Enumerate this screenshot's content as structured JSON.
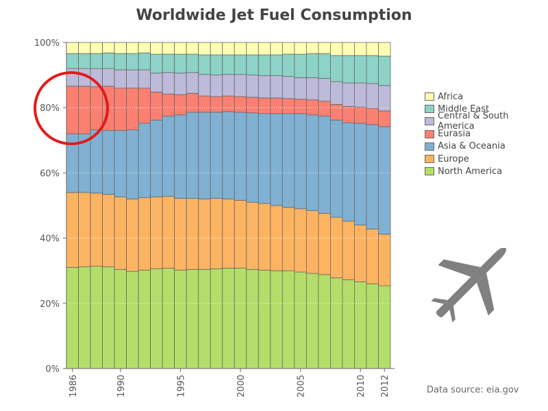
{
  "chart_data": {
    "type": "stacked-bar-100",
    "title": "Worldwide Jet Fuel Consumption",
    "xlabel": "",
    "ylabel": "",
    "ylim": [
      0,
      100
    ],
    "grid": true,
    "x": [
      1986,
      1987,
      1988,
      1989,
      1990,
      1991,
      1992,
      1993,
      1994,
      1995,
      1996,
      1997,
      1998,
      1999,
      2000,
      2001,
      2002,
      2003,
      2004,
      2005,
      2006,
      2007,
      2008,
      2009,
      2010,
      2011,
      2012
    ],
    "x_tick_labels": [
      "1986",
      "1990",
      "1995",
      "2000",
      "2005",
      "2010",
      "2012"
    ],
    "x_tick_values": [
      1986,
      1990,
      1995,
      2000,
      2005,
      2010,
      2012
    ],
    "y_tick_labels": [
      "0%",
      "20%",
      "40%",
      "60%",
      "80%",
      "100%"
    ],
    "y_tick_values": [
      0,
      20,
      40,
      60,
      80,
      100
    ],
    "series": [
      {
        "name": "North America",
        "color": "#b3de69",
        "values": [
          31.0,
          31.2,
          31.4,
          31.2,
          30.4,
          29.8,
          30.2,
          30.6,
          30.8,
          30.2,
          30.4,
          30.4,
          30.6,
          30.8,
          30.8,
          30.4,
          30.2,
          30.0,
          30.0,
          29.6,
          29.2,
          28.8,
          27.8,
          27.2,
          26.6,
          26.0,
          25.4
        ]
      },
      {
        "name": "Europe",
        "color": "#fdb462",
        "values": [
          23.0,
          22.8,
          22.4,
          22.2,
          22.2,
          22.2,
          22.2,
          22.0,
          22.0,
          22.0,
          21.8,
          21.6,
          21.6,
          21.2,
          20.8,
          20.6,
          20.4,
          20.0,
          19.4,
          19.4,
          19.2,
          18.8,
          18.6,
          18.0,
          17.4,
          16.8,
          15.8
        ]
      },
      {
        "name": "Asia & Oceania",
        "color": "#80b1d3",
        "values": [
          18.0,
          18.0,
          19.4,
          19.6,
          20.4,
          21.2,
          22.8,
          23.6,
          24.6,
          25.6,
          26.4,
          26.6,
          26.4,
          26.8,
          27.0,
          27.4,
          27.6,
          28.2,
          28.8,
          29.2,
          29.4,
          29.8,
          29.8,
          30.2,
          31.2,
          32.0,
          33.0
        ]
      },
      {
        "name": "Eurasia",
        "color": "#fb8072",
        "values": [
          14.6,
          14.6,
          13.2,
          13.6,
          13.0,
          12.8,
          10.8,
          8.6,
          6.8,
          6.2,
          5.8,
          5.0,
          4.8,
          4.8,
          4.8,
          4.8,
          4.8,
          4.8,
          4.6,
          4.4,
          4.6,
          4.6,
          4.8,
          5.0,
          5.0,
          5.0,
          4.8
        ]
      },
      {
        "name": "Central & South America",
        "color": "#bebada",
        "values": [
          5.4,
          5.4,
          5.6,
          5.4,
          5.6,
          5.6,
          5.6,
          5.8,
          6.6,
          6.6,
          6.4,
          6.6,
          6.6,
          6.6,
          6.8,
          6.8,
          6.8,
          6.8,
          6.8,
          6.6,
          6.8,
          7.0,
          7.0,
          7.2,
          7.4,
          7.6,
          7.8
        ]
      },
      {
        "name": "Middle East",
        "color": "#8dd3c7",
        "values": [
          4.6,
          4.6,
          4.6,
          4.8,
          5.0,
          5.0,
          5.2,
          5.8,
          5.6,
          5.8,
          5.6,
          6.0,
          6.2,
          6.0,
          6.0,
          6.2,
          6.4,
          6.4,
          6.8,
          7.2,
          7.4,
          7.6,
          8.0,
          8.4,
          8.4,
          8.6,
          9.0
        ]
      },
      {
        "name": "Africa",
        "color": "#ffffb3",
        "values": [
          3.4,
          3.4,
          3.4,
          3.2,
          3.4,
          3.4,
          3.2,
          3.6,
          3.6,
          3.6,
          3.6,
          3.8,
          3.8,
          3.8,
          3.8,
          3.8,
          3.8,
          3.8,
          3.6,
          3.6,
          3.4,
          3.4,
          4.0,
          4.0,
          4.0,
          4.0,
          4.2
        ]
      }
    ],
    "legend_order": [
      "Africa",
      "Middle East",
      "Central & South America",
      "Eurasia",
      "Asia & Oceania",
      "Europe",
      "North America"
    ],
    "legend_position": "right",
    "annotation": "red circle highlighting Eurasia around 1986-1988",
    "source": "Data source: eia.gov"
  }
}
